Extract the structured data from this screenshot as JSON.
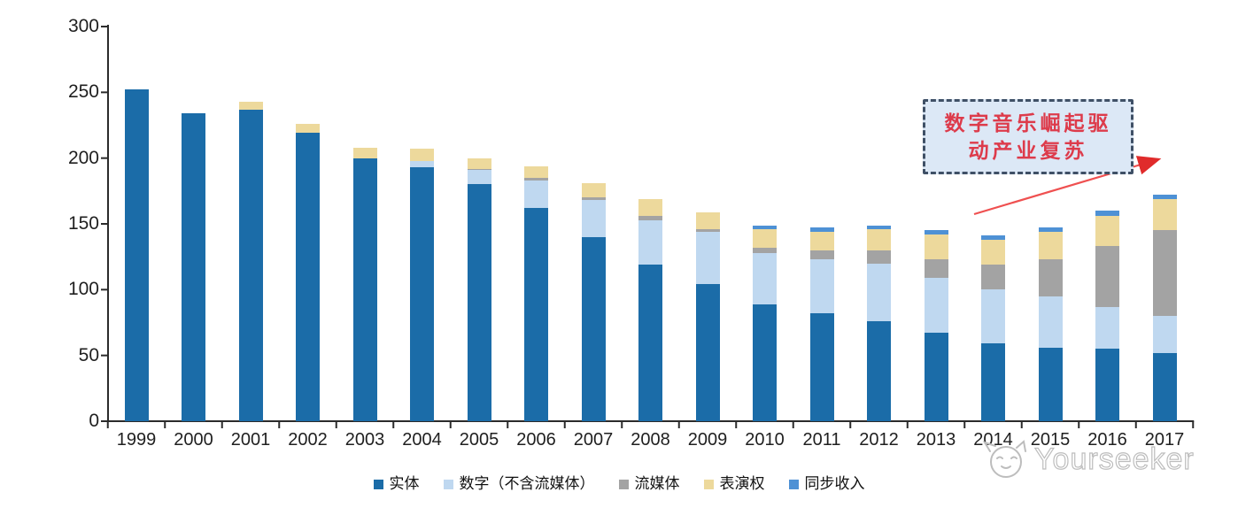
{
  "chart_data": {
    "type": "bar",
    "stacked": true,
    "x": [
      "1999",
      "2000",
      "2001",
      "2002",
      "2003",
      "2004",
      "2005",
      "2006",
      "2007",
      "2008",
      "2009",
      "2010",
      "2011",
      "2012",
      "2013",
      "2014",
      "2015",
      "2016",
      "2017"
    ],
    "series": [
      {
        "name": "实体",
        "color": "#1b6ca8",
        "values": [
          252,
          234,
          237,
          219,
          200,
          193,
          180,
          162,
          140,
          119,
          104,
          89,
          82,
          76,
          67,
          59,
          56,
          55,
          52
        ]
      },
      {
        "name": "数字（不含流媒体）",
        "color": "#bfd8f0",
        "values": [
          0,
          0,
          0,
          0,
          0,
          5,
          11,
          21,
          28,
          34,
          40,
          39,
          41,
          44,
          42,
          41,
          39,
          32,
          28
        ]
      },
      {
        "name": "流媒体",
        "color": "#a3a3a3",
        "values": [
          0,
          0,
          0,
          0,
          0,
          0,
          1,
          2,
          2,
          3,
          2,
          4,
          7,
          10,
          14,
          19,
          28,
          46,
          65
        ]
      },
      {
        "name": "表演权",
        "color": "#edd99c",
        "values": [
          0,
          0,
          6,
          7,
          8,
          9,
          8,
          9,
          11,
          13,
          13,
          14,
          14,
          16,
          19,
          19,
          21,
          23,
          24
        ]
      },
      {
        "name": "同步收入",
        "color": "#4e91d5",
        "values": [
          0,
          0,
          0,
          0,
          0,
          0,
          0,
          0,
          0,
          0,
          0,
          3,
          3,
          3,
          3,
          3,
          3,
          4,
          3
        ]
      }
    ],
    "totals": [
      252,
      234,
      243,
      226,
      208,
      207,
      200,
      194,
      181,
      169,
      159,
      149,
      147,
      149,
      145,
      141,
      147,
      160,
      172
    ],
    "ylim": [
      0,
      300
    ],
    "yticks": [
      0,
      50,
      100,
      150,
      200,
      250,
      300
    ],
    "grid": false,
    "legend_position": "bottom"
  },
  "annotation": {
    "line1": "数字音乐崛起驱",
    "line2": "动产业复苏",
    "text_color": "#dd3b4b",
    "box_fill": "#dce8f6",
    "box_border": "#3f5066",
    "arrow_color": "#ef5050"
  },
  "watermark": {
    "text": "Yourseeker",
    "logo": "yourseeker-cat-logo",
    "color": "#bdbdbd"
  },
  "axis_color": "#2b2b2b"
}
